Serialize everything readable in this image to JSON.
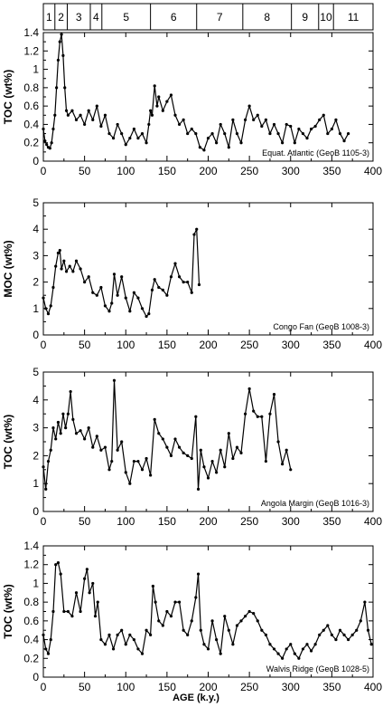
{
  "stages": [
    "1",
    "2",
    "3",
    "4",
    "5",
    "6",
    "7",
    "8",
    "9",
    "10",
    "11"
  ],
  "stage_boundaries": [
    0,
    14,
    29,
    57,
    71,
    130,
    186,
    242,
    301,
    334,
    352,
    400
  ],
  "xlabel": "AGE (k.y.)",
  "xticks": [
    "0",
    "50",
    "100",
    "150",
    "200",
    "250",
    "300",
    "350",
    "400"
  ],
  "chart_data": [
    {
      "type": "line",
      "ylabel": "TOC (wt%)",
      "site": "Equat. Atlantic  (GeoB 1105-3)",
      "xlim": [
        0,
        400
      ],
      "ylim": [
        0,
        1.4
      ],
      "yticks": [
        "0",
        "0.2",
        "0.4",
        "0.6",
        "0.8",
        "1",
        "1.2",
        "1.4"
      ],
      "x": [
        0,
        2,
        4,
        6,
        8,
        10,
        12,
        14,
        16,
        18,
        20,
        22,
        24,
        26,
        28,
        30,
        35,
        40,
        45,
        50,
        55,
        60,
        65,
        70,
        75,
        80,
        85,
        90,
        95,
        100,
        105,
        110,
        115,
        120,
        125,
        128,
        130,
        132,
        135,
        138,
        140,
        145,
        150,
        155,
        160,
        165,
        170,
        175,
        180,
        185,
        190,
        195,
        200,
        205,
        210,
        215,
        220,
        225,
        230,
        235,
        240,
        245,
        250,
        255,
        260,
        265,
        270,
        275,
        280,
        285,
        290,
        295,
        300,
        305,
        310,
        315,
        320,
        325,
        330,
        335,
        340,
        345,
        350,
        355,
        360,
        365,
        370
      ],
      "y": [
        0.35,
        0.22,
        0.18,
        0.15,
        0.14,
        0.2,
        0.35,
        0.5,
        0.8,
        1.1,
        1.3,
        1.38,
        1.15,
        0.8,
        0.55,
        0.5,
        0.55,
        0.45,
        0.5,
        0.4,
        0.55,
        0.45,
        0.6,
        0.38,
        0.5,
        0.3,
        0.25,
        0.4,
        0.3,
        0.18,
        0.25,
        0.35,
        0.25,
        0.3,
        0.2,
        0.4,
        0.55,
        0.5,
        0.82,
        0.6,
        0.7,
        0.55,
        0.65,
        0.72,
        0.5,
        0.4,
        0.45,
        0.3,
        0.35,
        0.3,
        0.15,
        0.12,
        0.25,
        0.3,
        0.2,
        0.4,
        0.3,
        0.15,
        0.45,
        0.3,
        0.2,
        0.45,
        0.6,
        0.45,
        0.5,
        0.38,
        0.45,
        0.3,
        0.4,
        0.3,
        0.2,
        0.4,
        0.38,
        0.2,
        0.35,
        0.3,
        0.25,
        0.35,
        0.38,
        0.45,
        0.5,
        0.3,
        0.35,
        0.45,
        0.3,
        0.22,
        0.3
      ]
    },
    {
      "type": "line",
      "ylabel": "MOC (wt%)",
      "site": "Congo Fan  (GeoB 1008-3)",
      "xlim": [
        0,
        400
      ],
      "ylim": [
        0,
        5
      ],
      "yticks": [
        "0",
        "1",
        "2",
        "3",
        "4",
        "5"
      ],
      "x": [
        0,
        3,
        6,
        9,
        12,
        15,
        18,
        20,
        22,
        25,
        28,
        32,
        36,
        40,
        45,
        50,
        55,
        60,
        65,
        70,
        75,
        80,
        83,
        86,
        90,
        95,
        100,
        105,
        110,
        115,
        120,
        125,
        128,
        132,
        135,
        140,
        145,
        150,
        155,
        160,
        165,
        170,
        175,
        180,
        183,
        186,
        189
      ],
      "y": [
        1.4,
        1.0,
        0.8,
        1.1,
        1.8,
        2.6,
        3.1,
        3.2,
        2.5,
        2.8,
        2.4,
        2.6,
        2.4,
        2.8,
        2.5,
        2.0,
        2.2,
        1.6,
        1.5,
        1.8,
        1.1,
        0.9,
        1.2,
        2.3,
        1.5,
        2.2,
        1.4,
        0.9,
        1.6,
        1.4,
        1.0,
        0.7,
        0.8,
        1.7,
        2.1,
        1.8,
        1.7,
        1.5,
        2.2,
        2.7,
        2.2,
        2.0,
        2.0,
        1.6,
        3.8,
        4.0,
        1.9
      ]
    },
    {
      "type": "line",
      "ylabel": "TOC (wt%)",
      "site": "Angola Margin  (GeoB 1016-3)",
      "xlim": [
        0,
        400
      ],
      "ylim": [
        0,
        5
      ],
      "yticks": [
        "0",
        "1",
        "2",
        "3",
        "4",
        "5"
      ],
      "x": [
        0,
        3,
        6,
        9,
        12,
        15,
        18,
        21,
        24,
        27,
        30,
        33,
        36,
        40,
        45,
        50,
        55,
        60,
        65,
        70,
        75,
        80,
        83,
        86,
        90,
        95,
        100,
        105,
        110,
        115,
        120,
        125,
        130,
        135,
        140,
        145,
        150,
        155,
        160,
        165,
        170,
        175,
        180,
        185,
        188,
        191,
        195,
        200,
        205,
        210,
        215,
        220,
        225,
        230,
        235,
        240,
        245,
        250,
        255,
        260,
        265,
        270,
        275,
        280,
        285,
        290,
        295,
        300
      ],
      "y": [
        1.6,
        0.8,
        1.8,
        2.2,
        3.0,
        2.6,
        3.2,
        2.8,
        3.5,
        3.0,
        3.5,
        4.3,
        3.3,
        2.8,
        2.9,
        2.6,
        3.0,
        2.3,
        2.7,
        2.2,
        2.3,
        1.5,
        1.8,
        4.7,
        2.2,
        2.5,
        1.4,
        1.0,
        1.8,
        1.8,
        1.5,
        1.9,
        1.3,
        3.3,
        2.8,
        2.6,
        2.3,
        2.0,
        2.6,
        2.3,
        2.1,
        2.0,
        1.9,
        3.4,
        0.8,
        2.2,
        1.6,
        1.2,
        1.8,
        1.4,
        2.2,
        1.6,
        2.8,
        1.9,
        2.3,
        2.1,
        3.5,
        4.4,
        3.6,
        3.4,
        3.4,
        1.8,
        3.5,
        4.2,
        2.5,
        1.7,
        2.2,
        1.5
      ]
    },
    {
      "type": "line",
      "ylabel": "TOC (wt%)",
      "site": "Walvis Ridge  (GeoB 1028-5)",
      "xlim": [
        0,
        400
      ],
      "ylim": [
        0,
        1.4
      ],
      "yticks": [
        "0",
        "0.2",
        "0.4",
        "0.6",
        "0.8",
        "1",
        "1.2",
        "1.4"
      ],
      "x": [
        0,
        3,
        6,
        9,
        12,
        15,
        18,
        21,
        25,
        30,
        35,
        40,
        45,
        50,
        53,
        56,
        60,
        63,
        66,
        70,
        75,
        80,
        85,
        90,
        95,
        100,
        105,
        110,
        115,
        120,
        125,
        130,
        133,
        136,
        140,
        145,
        150,
        155,
        160,
        165,
        170,
        175,
        180,
        185,
        188,
        191,
        195,
        200,
        205,
        210,
        215,
        220,
        225,
        230,
        235,
        240,
        245,
        250,
        255,
        260,
        265,
        270,
        275,
        280,
        285,
        290,
        295,
        300,
        305,
        310,
        315,
        320,
        325,
        330,
        335,
        340,
        345,
        350,
        355,
        360,
        365,
        370,
        375,
        380,
        385,
        390,
        394,
        398
      ],
      "y": [
        0.45,
        0.3,
        0.25,
        0.4,
        0.7,
        1.2,
        1.22,
        1.1,
        0.7,
        0.7,
        0.65,
        0.9,
        0.7,
        1.05,
        1.15,
        0.9,
        1.0,
        0.65,
        0.8,
        0.4,
        0.35,
        0.45,
        0.3,
        0.45,
        0.5,
        0.35,
        0.45,
        0.4,
        0.3,
        0.25,
        0.5,
        0.45,
        0.97,
        0.8,
        0.6,
        0.55,
        0.7,
        0.65,
        0.8,
        0.8,
        0.5,
        0.45,
        0.6,
        0.85,
        1.1,
        0.5,
        0.35,
        0.3,
        0.6,
        0.4,
        0.25,
        0.65,
        0.5,
        0.35,
        0.55,
        0.6,
        0.65,
        0.7,
        0.68,
        0.6,
        0.5,
        0.45,
        0.35,
        0.3,
        0.25,
        0.2,
        0.3,
        0.35,
        0.25,
        0.2,
        0.3,
        0.35,
        0.28,
        0.35,
        0.45,
        0.5,
        0.55,
        0.45,
        0.4,
        0.5,
        0.45,
        0.4,
        0.45,
        0.5,
        0.6,
        0.8,
        0.5,
        0.35
      ]
    }
  ]
}
